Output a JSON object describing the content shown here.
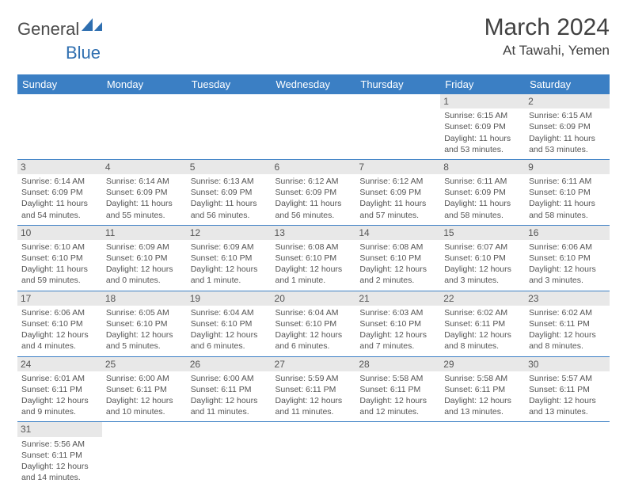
{
  "logo": {
    "part1": "General",
    "part2": "Blue"
  },
  "title": "March 2024",
  "location": "At Tawahi, Yemen",
  "colors": {
    "header_bg": "#3b7fc4",
    "header_text": "#ffffff",
    "daynum_bg": "#e8e8e8",
    "border": "#3b7fc4",
    "text": "#545454",
    "logo_blue": "#2f6fb0",
    "logo_gray": "#4a4a4a"
  },
  "weekdays": [
    "Sunday",
    "Monday",
    "Tuesday",
    "Wednesday",
    "Thursday",
    "Friday",
    "Saturday"
  ],
  "weeks": [
    [
      null,
      null,
      null,
      null,
      null,
      {
        "n": "1",
        "sr": "Sunrise: 6:15 AM",
        "ss": "Sunset: 6:09 PM",
        "dl": "Daylight: 11 hours and 53 minutes."
      },
      {
        "n": "2",
        "sr": "Sunrise: 6:15 AM",
        "ss": "Sunset: 6:09 PM",
        "dl": "Daylight: 11 hours and 53 minutes."
      }
    ],
    [
      {
        "n": "3",
        "sr": "Sunrise: 6:14 AM",
        "ss": "Sunset: 6:09 PM",
        "dl": "Daylight: 11 hours and 54 minutes."
      },
      {
        "n": "4",
        "sr": "Sunrise: 6:14 AM",
        "ss": "Sunset: 6:09 PM",
        "dl": "Daylight: 11 hours and 55 minutes."
      },
      {
        "n": "5",
        "sr": "Sunrise: 6:13 AM",
        "ss": "Sunset: 6:09 PM",
        "dl": "Daylight: 11 hours and 56 minutes."
      },
      {
        "n": "6",
        "sr": "Sunrise: 6:12 AM",
        "ss": "Sunset: 6:09 PM",
        "dl": "Daylight: 11 hours and 56 minutes."
      },
      {
        "n": "7",
        "sr": "Sunrise: 6:12 AM",
        "ss": "Sunset: 6:09 PM",
        "dl": "Daylight: 11 hours and 57 minutes."
      },
      {
        "n": "8",
        "sr": "Sunrise: 6:11 AM",
        "ss": "Sunset: 6:09 PM",
        "dl": "Daylight: 11 hours and 58 minutes."
      },
      {
        "n": "9",
        "sr": "Sunrise: 6:11 AM",
        "ss": "Sunset: 6:10 PM",
        "dl": "Daylight: 11 hours and 58 minutes."
      }
    ],
    [
      {
        "n": "10",
        "sr": "Sunrise: 6:10 AM",
        "ss": "Sunset: 6:10 PM",
        "dl": "Daylight: 11 hours and 59 minutes."
      },
      {
        "n": "11",
        "sr": "Sunrise: 6:09 AM",
        "ss": "Sunset: 6:10 PM",
        "dl": "Daylight: 12 hours and 0 minutes."
      },
      {
        "n": "12",
        "sr": "Sunrise: 6:09 AM",
        "ss": "Sunset: 6:10 PM",
        "dl": "Daylight: 12 hours and 1 minute."
      },
      {
        "n": "13",
        "sr": "Sunrise: 6:08 AM",
        "ss": "Sunset: 6:10 PM",
        "dl": "Daylight: 12 hours and 1 minute."
      },
      {
        "n": "14",
        "sr": "Sunrise: 6:08 AM",
        "ss": "Sunset: 6:10 PM",
        "dl": "Daylight: 12 hours and 2 minutes."
      },
      {
        "n": "15",
        "sr": "Sunrise: 6:07 AM",
        "ss": "Sunset: 6:10 PM",
        "dl": "Daylight: 12 hours and 3 minutes."
      },
      {
        "n": "16",
        "sr": "Sunrise: 6:06 AM",
        "ss": "Sunset: 6:10 PM",
        "dl": "Daylight: 12 hours and 3 minutes."
      }
    ],
    [
      {
        "n": "17",
        "sr": "Sunrise: 6:06 AM",
        "ss": "Sunset: 6:10 PM",
        "dl": "Daylight: 12 hours and 4 minutes."
      },
      {
        "n": "18",
        "sr": "Sunrise: 6:05 AM",
        "ss": "Sunset: 6:10 PM",
        "dl": "Daylight: 12 hours and 5 minutes."
      },
      {
        "n": "19",
        "sr": "Sunrise: 6:04 AM",
        "ss": "Sunset: 6:10 PM",
        "dl": "Daylight: 12 hours and 6 minutes."
      },
      {
        "n": "20",
        "sr": "Sunrise: 6:04 AM",
        "ss": "Sunset: 6:10 PM",
        "dl": "Daylight: 12 hours and 6 minutes."
      },
      {
        "n": "21",
        "sr": "Sunrise: 6:03 AM",
        "ss": "Sunset: 6:10 PM",
        "dl": "Daylight: 12 hours and 7 minutes."
      },
      {
        "n": "22",
        "sr": "Sunrise: 6:02 AM",
        "ss": "Sunset: 6:11 PM",
        "dl": "Daylight: 12 hours and 8 minutes."
      },
      {
        "n": "23",
        "sr": "Sunrise: 6:02 AM",
        "ss": "Sunset: 6:11 PM",
        "dl": "Daylight: 12 hours and 8 minutes."
      }
    ],
    [
      {
        "n": "24",
        "sr": "Sunrise: 6:01 AM",
        "ss": "Sunset: 6:11 PM",
        "dl": "Daylight: 12 hours and 9 minutes."
      },
      {
        "n": "25",
        "sr": "Sunrise: 6:00 AM",
        "ss": "Sunset: 6:11 PM",
        "dl": "Daylight: 12 hours and 10 minutes."
      },
      {
        "n": "26",
        "sr": "Sunrise: 6:00 AM",
        "ss": "Sunset: 6:11 PM",
        "dl": "Daylight: 12 hours and 11 minutes."
      },
      {
        "n": "27",
        "sr": "Sunrise: 5:59 AM",
        "ss": "Sunset: 6:11 PM",
        "dl": "Daylight: 12 hours and 11 minutes."
      },
      {
        "n": "28",
        "sr": "Sunrise: 5:58 AM",
        "ss": "Sunset: 6:11 PM",
        "dl": "Daylight: 12 hours and 12 minutes."
      },
      {
        "n": "29",
        "sr": "Sunrise: 5:58 AM",
        "ss": "Sunset: 6:11 PM",
        "dl": "Daylight: 12 hours and 13 minutes."
      },
      {
        "n": "30",
        "sr": "Sunrise: 5:57 AM",
        "ss": "Sunset: 6:11 PM",
        "dl": "Daylight: 12 hours and 13 minutes."
      }
    ],
    [
      {
        "n": "31",
        "sr": "Sunrise: 5:56 AM",
        "ss": "Sunset: 6:11 PM",
        "dl": "Daylight: 12 hours and 14 minutes."
      },
      null,
      null,
      null,
      null,
      null,
      null
    ]
  ]
}
